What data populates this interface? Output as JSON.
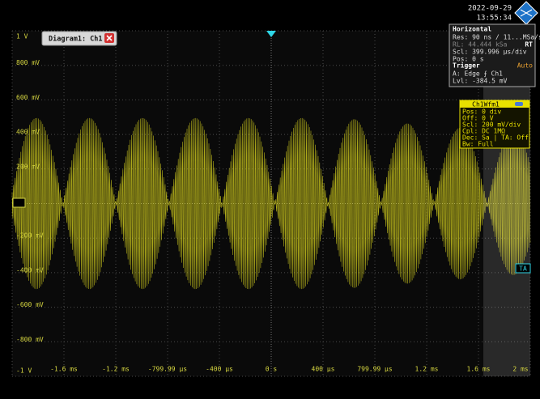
{
  "header": {
    "date": "2022-09-29",
    "time": "13:55:34"
  },
  "diagram_tab": "Diagram1: Ch1",
  "y_labels": [
    "1 V",
    "800 mV",
    "600 mV",
    "400 mV",
    "200 mV",
    "C1",
    "-200 mV",
    "-400 mV",
    "-600 mV",
    "-800 mV",
    "-1 V"
  ],
  "x_labels": [
    "-1.6 ms",
    "-1.2 ms",
    "-799.99 µs",
    "-400 µs",
    "0 s",
    "400 µs",
    "799.99 µs",
    "1.2 ms",
    "1.6 ms",
    "2 ms"
  ],
  "horizontal_panel": {
    "title": "Horizontal",
    "lines": [
      "Res: 90 ns / 11...MSa/s",
      "RL: 44.444 kSa",
      "Scl: 399.996 µs/div",
      "Pos: 0 s"
    ],
    "badge": "RT"
  },
  "trigger_panel": {
    "title": "Trigger",
    "mode": "Auto",
    "lines": [
      "A:  Edge ⨍ Ch1",
      "Lvl: -384.5 mV"
    ]
  },
  "channel_panel": {
    "title": "Ch1Wfm1",
    "lines": [
      "Pos: 0 div",
      "Off: 0 V",
      "Scl: 200 mV/div",
      "Cpl: DC 1MΩ",
      "Dec: Sa | TA: Off",
      "Bw: Full"
    ]
  },
  "trigger_marker": "TA"
}
